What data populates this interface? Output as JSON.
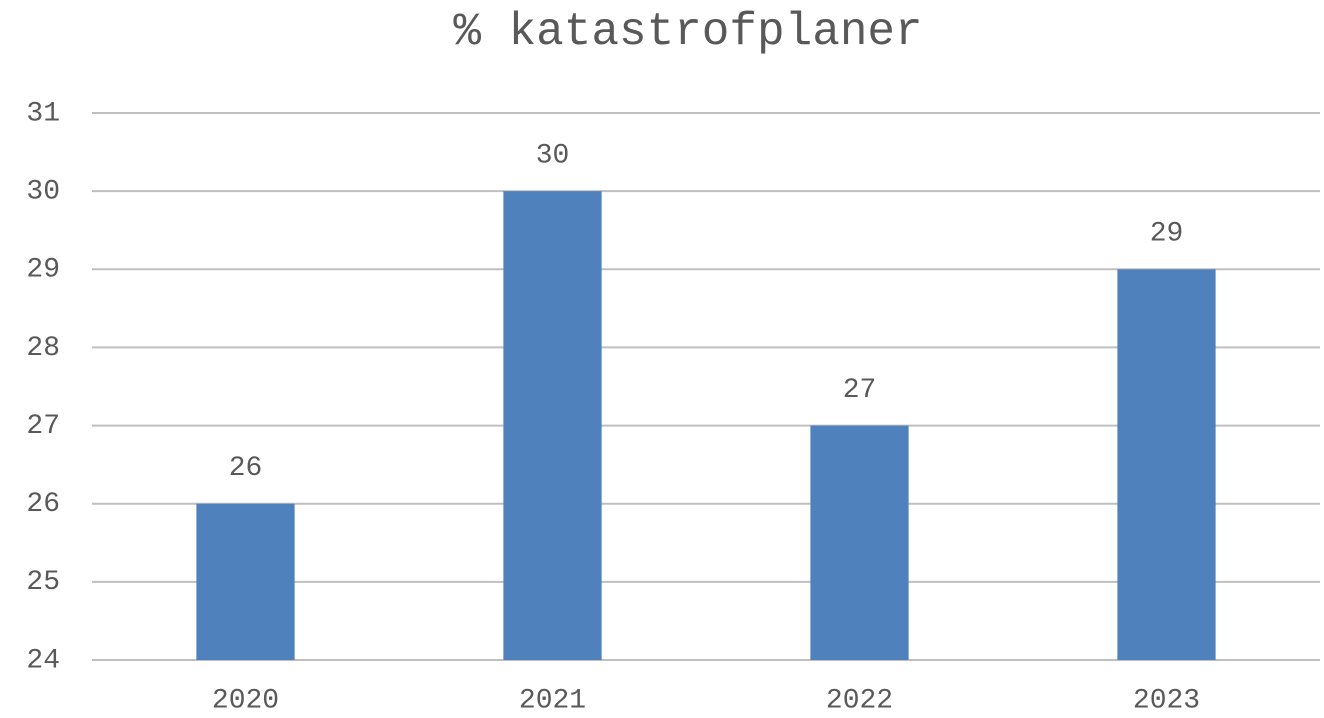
{
  "chart_data": {
    "type": "bar",
    "title": "% katastrofplaner",
    "categories": [
      "2020",
      "2021",
      "2022",
      "2023"
    ],
    "values": [
      26,
      30,
      27,
      29
    ],
    "color": "#4f81bd",
    "ylim": [
      24,
      31
    ],
    "yticks": [
      24,
      25,
      26,
      27,
      28,
      29,
      30,
      31
    ],
    "grid": true
  }
}
